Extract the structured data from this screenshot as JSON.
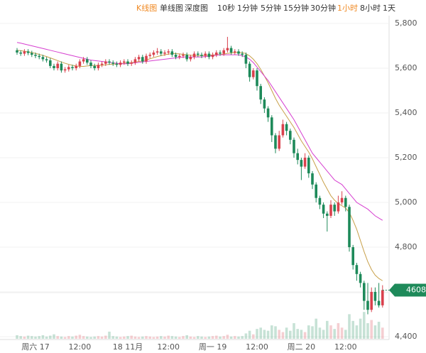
{
  "toolbar": {
    "modes": [
      "K线图",
      "单线图",
      "深度图"
    ],
    "intervals": [
      "10秒",
      "1分钟",
      "5分钟",
      "15分钟",
      "30分钟",
      "1小时",
      "8小时",
      "1天"
    ]
  },
  "chart_data": {
    "type": "candlestick",
    "categories": [
      null,
      null,
      null,
      null,
      null,
      "周六 17",
      null,
      null,
      null,
      null,
      null,
      null,
      null,
      null,
      null,
      null,
      null,
      "12:00",
      null,
      null,
      null,
      null,
      null,
      null,
      null,
      null,
      null,
      null,
      null,
      null,
      "18 11月",
      null,
      null,
      null,
      null,
      null,
      null,
      null,
      null,
      null,
      null,
      "12:00",
      null,
      null,
      null,
      null,
      null,
      null,
      null,
      null,
      null,
      null,
      null,
      "周一 19",
      null,
      null,
      null,
      null,
      null,
      null,
      null,
      null,
      null,
      null,
      null,
      "12:00",
      null,
      null,
      null,
      null,
      null,
      null,
      null,
      null,
      null,
      null,
      null,
      "周二 20",
      null,
      null,
      null,
      null,
      null,
      null,
      null,
      null,
      null,
      null,
      null,
      "12:00",
      null,
      null,
      null,
      null,
      null,
      null,
      null,
      null,
      null,
      null
    ],
    "candles": [
      [
        5680,
        5690,
        5660,
        5670
      ],
      [
        5670,
        5680,
        5655,
        5665
      ],
      [
        5665,
        5685,
        5655,
        5675
      ],
      [
        5675,
        5685,
        5658,
        5668
      ],
      [
        5668,
        5678,
        5650,
        5660
      ],
      [
        5660,
        5670,
        5645,
        5655
      ],
      [
        5655,
        5665,
        5640,
        5650
      ],
      [
        5650,
        5660,
        5630,
        5640
      ],
      [
        5640,
        5650,
        5625,
        5635
      ],
      [
        5635,
        5645,
        5600,
        5610
      ],
      [
        5610,
        5620,
        5590,
        5600
      ],
      [
        5600,
        5630,
        5590,
        5620
      ],
      [
        5620,
        5630,
        5580,
        5590
      ],
      [
        5590,
        5605,
        5580,
        5595
      ],
      [
        5595,
        5615,
        5585,
        5605
      ],
      [
        5605,
        5615,
        5590,
        5600
      ],
      [
        5600,
        5620,
        5590,
        5610
      ],
      [
        5610,
        5640,
        5600,
        5630
      ],
      [
        5630,
        5650,
        5620,
        5640
      ],
      [
        5640,
        5650,
        5615,
        5625
      ],
      [
        5625,
        5635,
        5600,
        5610
      ],
      [
        5610,
        5620,
        5590,
        5600
      ],
      [
        5600,
        5625,
        5590,
        5615
      ],
      [
        5615,
        5630,
        5605,
        5620
      ],
      [
        5620,
        5640,
        5610,
        5630
      ],
      [
        5630,
        5640,
        5615,
        5625
      ],
      [
        5625,
        5635,
        5610,
        5620
      ],
      [
        5620,
        5630,
        5605,
        5615
      ],
      [
        5615,
        5635,
        5605,
        5625
      ],
      [
        5625,
        5640,
        5615,
        5630
      ],
      [
        5630,
        5640,
        5610,
        5620
      ],
      [
        5620,
        5635,
        5610,
        5625
      ],
      [
        5625,
        5650,
        5615,
        5640
      ],
      [
        5640,
        5660,
        5630,
        5650
      ],
      [
        5650,
        5660,
        5620,
        5630
      ],
      [
        5630,
        5665,
        5620,
        5655
      ],
      [
        5655,
        5670,
        5645,
        5660
      ],
      [
        5660,
        5680,
        5650,
        5670
      ],
      [
        5670,
        5690,
        5660,
        5675
      ],
      [
        5675,
        5685,
        5655,
        5665
      ],
      [
        5665,
        5680,
        5655,
        5670
      ],
      [
        5670,
        5685,
        5660,
        5675
      ],
      [
        5675,
        5685,
        5650,
        5660
      ],
      [
        5660,
        5670,
        5640,
        5650
      ],
      [
        5650,
        5665,
        5640,
        5655
      ],
      [
        5655,
        5670,
        5645,
        5660
      ],
      [
        5660,
        5670,
        5630,
        5640
      ],
      [
        5640,
        5660,
        5630,
        5650
      ],
      [
        5650,
        5675,
        5640,
        5665
      ],
      [
        5665,
        5675,
        5650,
        5660
      ],
      [
        5660,
        5670,
        5645,
        5655
      ],
      [
        5655,
        5675,
        5645,
        5665
      ],
      [
        5665,
        5675,
        5640,
        5650
      ],
      [
        5650,
        5670,
        5640,
        5660
      ],
      [
        5660,
        5680,
        5650,
        5670
      ],
      [
        5670,
        5680,
        5655,
        5665
      ],
      [
        5665,
        5690,
        5655,
        5680
      ],
      [
        5680,
        5740,
        5670,
        5690
      ],
      [
        5690,
        5700,
        5660,
        5670
      ],
      [
        5670,
        5685,
        5660,
        5675
      ],
      [
        5675,
        5685,
        5655,
        5665
      ],
      [
        5665,
        5675,
        5650,
        5660
      ],
      [
        5660,
        5670,
        5600,
        5620
      ],
      [
        5620,
        5630,
        5540,
        5560
      ],
      [
        5560,
        5600,
        5550,
        5590
      ],
      [
        5590,
        5600,
        5500,
        5520
      ],
      [
        5520,
        5530,
        5440,
        5460
      ],
      [
        5460,
        5470,
        5400,
        5420
      ],
      [
        5420,
        5430,
        5360,
        5380
      ],
      [
        5380,
        5390,
        5270,
        5300
      ],
      [
        5300,
        5310,
        5220,
        5240
      ],
      [
        5240,
        5320,
        5230,
        5300
      ],
      [
        5300,
        5370,
        5290,
        5350
      ],
      [
        5350,
        5360,
        5300,
        5320
      ],
      [
        5320,
        5330,
        5260,
        5280
      ],
      [
        5280,
        5290,
        5200,
        5220
      ],
      [
        5220,
        5240,
        5170,
        5190
      ],
      [
        5190,
        5200,
        5100,
        5160
      ],
      [
        5160,
        5220,
        5150,
        5200
      ],
      [
        5200,
        5210,
        5110,
        5130
      ],
      [
        5130,
        5140,
        5060,
        5080
      ],
      [
        5080,
        5090,
        5000,
        5020
      ],
      [
        5020,
        5030,
        4970,
        4990
      ],
      [
        4990,
        5000,
        4930,
        4950
      ],
      [
        4950,
        4960,
        4870,
        4940
      ],
      [
        4940,
        5010,
        4930,
        4990
      ],
      [
        4990,
        5000,
        4940,
        4960
      ],
      [
        4960,
        5030,
        4950,
        5000
      ],
      [
        5000,
        5050,
        4990,
        5020
      ],
      [
        5020,
        5030,
        4960,
        4980
      ],
      [
        4980,
        4990,
        4780,
        4800
      ],
      [
        4800,
        4810,
        4700,
        4720
      ],
      [
        4720,
        4730,
        4650,
        4680
      ],
      [
        4680,
        4690,
        4620,
        4640
      ],
      [
        4640,
        4650,
        4520,
        4560
      ],
      [
        4560,
        4640,
        4500,
        4520
      ],
      [
        4520,
        4620,
        4510,
        4600
      ],
      [
        4600,
        4620,
        4540,
        4560
      ],
      [
        4560,
        4640,
        4530,
        4540
      ],
      [
        4540,
        4630,
        4530,
        4608
      ]
    ],
    "up_color": "#d9414d",
    "down_color": "#1e8a5a",
    "lines": [
      {
        "color": "#c8a04a",
        "values": [
          5680,
          5678,
          5676,
          5673,
          5670,
          5666,
          5662,
          5657,
          5652,
          5646,
          5640,
          5634,
          5628,
          5622,
          5617,
          5613,
          5610,
          5608,
          5608,
          5610,
          5612,
          5612,
          5612,
          5613,
          5615,
          5617,
          5618,
          5619,
          5620,
          5622,
          5624,
          5625,
          5627,
          5630,
          5633,
          5637,
          5642,
          5647,
          5652,
          5656,
          5660,
          5663,
          5665,
          5665,
          5664,
          5662,
          5660,
          5658,
          5657,
          5656,
          5656,
          5657,
          5658,
          5659,
          5660,
          5661,
          5663,
          5666,
          5668,
          5670,
          5670,
          5670,
          5665,
          5655,
          5640,
          5620,
          5595,
          5565,
          5535,
          5500,
          5465,
          5435,
          5410,
          5385,
          5360,
          5335,
          5305,
          5275,
          5250,
          5225,
          5195,
          5160,
          5125,
          5090,
          5060,
          5030,
          5010,
          4995,
          4985,
          4975,
          4955,
          4920,
          4880,
          4830,
          4780,
          4735,
          4700,
          4675,
          4660,
          4650
        ]
      },
      {
        "color": "#d63fd0",
        "values": [
          5715,
          5712,
          5708,
          5704,
          5700,
          5696,
          5692,
          5688,
          5684,
          5680,
          5676,
          5672,
          5668,
          5664,
          5660,
          5656,
          5652,
          5648,
          5644,
          5640,
          5636,
          5634,
          5632,
          5630,
          5628,
          5626,
          5624,
          5622,
          5620,
          5620,
          5620,
          5622,
          5624,
          5626,
          5628,
          5630,
          5632,
          5634,
          5636,
          5638,
          5640,
          5642,
          5644,
          5646,
          5648,
          5650,
          5650,
          5650,
          5650,
          5650,
          5650,
          5652,
          5654,
          5656,
          5658,
          5660,
          5660,
          5660,
          5660,
          5660,
          5660,
          5656,
          5650,
          5640,
          5625,
          5605,
          5585,
          5565,
          5545,
          5520,
          5495,
          5470,
          5445,
          5420,
          5395,
          5370,
          5340,
          5310,
          5280,
          5250,
          5220,
          5200,
          5180,
          5160,
          5140,
          5120,
          5100,
          5090,
          5080,
          5060,
          5040,
          5020,
          5000,
          4990,
          4980,
          4970,
          4955,
          4940,
          4930,
          4920
        ]
      }
    ],
    "volume": [
      8,
      6,
      5,
      7,
      6,
      5,
      6,
      8,
      5,
      7,
      10,
      6,
      5,
      4,
      6,
      5,
      7,
      9,
      6,
      5,
      4,
      5,
      6,
      5,
      7,
      16,
      6,
      5,
      4,
      5,
      6,
      7,
      5,
      4,
      5,
      6,
      5,
      4,
      5,
      6,
      5,
      7,
      6,
      5,
      4,
      6,
      8,
      5,
      4,
      6,
      5,
      4,
      5,
      6,
      7,
      5,
      6,
      9,
      5,
      6,
      5,
      6,
      12,
      18,
      10,
      22,
      25,
      20,
      18,
      30,
      28,
      20,
      15,
      25,
      18,
      35,
      22,
      20,
      15,
      30,
      28,
      45,
      25,
      20,
      40,
      30,
      22,
      35,
      25,
      20,
      55,
      40,
      30,
      45,
      60,
      35,
      42,
      30,
      38,
      25
    ],
    "volume_ylim": [
      0,
      100
    ],
    "ylim": [
      4400,
      5800
    ],
    "yticks": [
      {
        "value": 4400,
        "label": "4,400"
      },
      {
        "value": 4600,
        "label": "4,600"
      },
      {
        "value": 4800,
        "label": "4,800"
      },
      {
        "value": 5000,
        "label": "5,000"
      },
      {
        "value": 5200,
        "label": "5,200"
      },
      {
        "value": 5400,
        "label": "5,400"
      },
      {
        "value": 5600,
        "label": "5,600"
      },
      {
        "value": 5800,
        "label": "5,800"
      }
    ],
    "grid": true,
    "last_price": 4608
  }
}
